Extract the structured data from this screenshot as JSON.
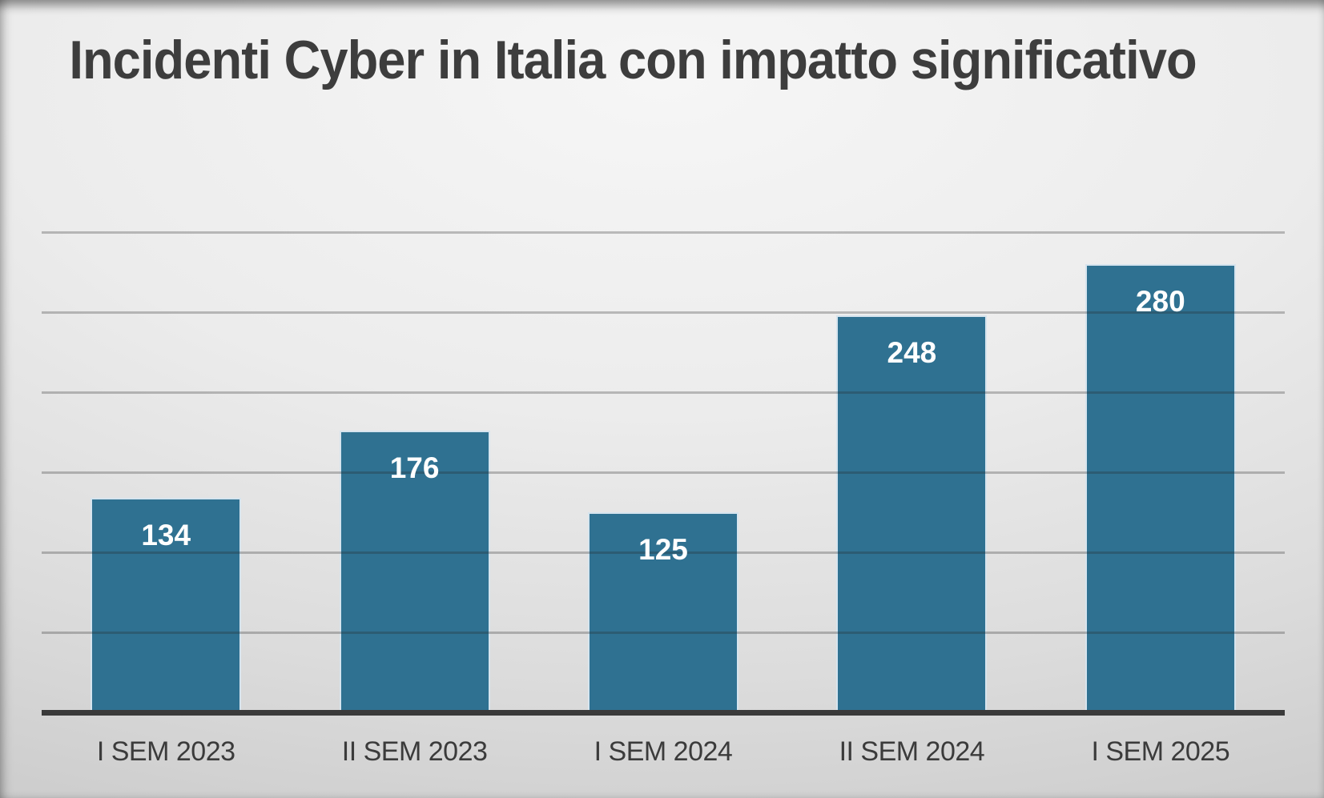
{
  "chart_data": {
    "type": "bar",
    "title": "Incidenti Cyber in Italia con impatto significativo",
    "categories": [
      "I SEM 2023",
      "II SEM 2023",
      "I SEM 2024",
      "II SEM 2024",
      "I SEM 2025"
    ],
    "values": [
      134,
      176,
      125,
      248,
      280
    ],
    "data_labels_visible": true,
    "y_axis_tick_labels_visible": false,
    "xlabel": "",
    "ylabel": "",
    "ylim": [
      0,
      300
    ],
    "gridline_step": 50,
    "grid": "horizontal",
    "legend_position": "none",
    "colors": {
      "bar_fill": "#2F7191",
      "bar_border": "#D6E4EE",
      "data_label": "#FFFFFF",
      "title": "#3D3D3D",
      "tick_label": "#3B3B3B",
      "gridline": "#9B9B9B",
      "axis_line": "#3A3A3A",
      "background": "#E4E4E4"
    }
  }
}
